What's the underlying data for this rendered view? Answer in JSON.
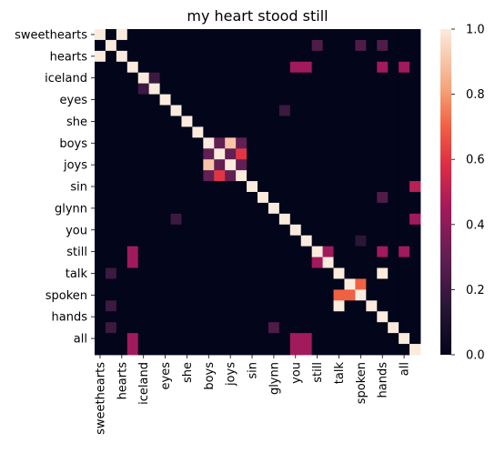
{
  "chart_data": {
    "type": "heatmap",
    "title": "my heart stood still",
    "labels": [
      "sweethearts",
      "",
      "hearts",
      "",
      "iceland",
      "",
      "eyes",
      "",
      "she",
      "",
      "boys",
      "",
      "joys",
      "",
      "sin",
      "",
      "glynn",
      "",
      "you",
      "",
      "still",
      "",
      "talk",
      "",
      "spoken",
      "",
      "hands",
      "",
      "all",
      ""
    ],
    "tick_labels": [
      "sweethearts",
      "hearts",
      "iceland",
      "eyes",
      "she",
      "boys",
      "joys",
      "sin",
      "glynn",
      "you",
      "still",
      "talk",
      "spoken",
      "hands",
      "all"
    ],
    "matrix": [
      [
        1,
        0,
        1,
        0,
        0,
        0,
        0,
        0,
        0,
        0,
        0,
        0,
        0,
        0,
        0,
        0,
        0,
        0,
        0,
        0,
        0,
        0,
        0,
        0,
        0,
        0,
        0,
        0,
        0,
        0
      ],
      [
        0,
        1,
        0,
        0,
        0,
        0,
        0,
        0,
        0,
        0,
        0,
        0,
        0,
        0,
        0,
        0,
        0,
        0,
        0,
        0,
        0.25,
        0,
        0,
        0,
        0.25,
        0,
        0.25,
        0,
        0,
        0
      ],
      [
        1,
        0,
        1,
        0,
        0,
        0,
        0,
        0,
        0,
        0,
        0,
        0,
        0,
        0,
        0,
        0,
        0,
        0,
        0,
        0,
        0,
        0,
        0,
        0,
        0,
        0,
        0,
        0,
        0,
        0
      ],
      [
        0,
        0,
        0,
        1,
        0,
        0,
        0,
        0,
        0,
        0,
        0,
        0,
        0,
        0,
        0,
        0,
        0,
        0,
        0.45,
        0.45,
        0,
        0,
        0,
        0,
        0,
        0,
        0.45,
        0,
        0.45,
        0
      ],
      [
        0,
        0,
        0,
        0,
        1,
        0.2,
        0,
        0,
        0,
        0,
        0,
        0,
        0,
        0,
        0,
        0,
        0,
        0,
        0,
        0,
        0,
        0,
        0,
        0,
        0,
        0,
        0,
        0,
        0,
        0
      ],
      [
        0,
        0,
        0,
        0,
        0.2,
        1,
        0,
        0,
        0,
        0,
        0,
        0,
        0,
        0,
        0,
        0,
        0,
        0,
        0,
        0,
        0,
        0,
        0,
        0,
        0,
        0,
        0,
        0,
        0,
        0
      ],
      [
        0,
        0,
        0,
        0,
        0,
        0,
        1,
        0,
        0,
        0,
        0,
        0,
        0,
        0,
        0,
        0,
        0,
        0,
        0,
        0,
        0,
        0,
        0,
        0,
        0,
        0,
        0,
        0,
        0,
        0
      ],
      [
        0,
        0,
        0,
        0,
        0,
        0,
        0,
        1,
        0,
        0,
        0,
        0,
        0,
        0,
        0,
        0,
        0,
        0.2,
        0,
        0,
        0,
        0,
        0,
        0,
        0,
        0,
        0,
        0,
        0,
        0
      ],
      [
        0,
        0,
        0,
        0,
        0,
        0,
        0,
        0,
        1,
        0,
        0,
        0,
        0,
        0,
        0,
        0,
        0,
        0,
        0,
        0,
        0,
        0,
        0,
        0,
        0,
        0,
        0,
        0,
        0,
        0
      ],
      [
        0,
        0,
        0,
        0,
        0,
        0,
        0,
        0,
        0,
        1,
        0,
        0,
        0,
        0,
        0,
        0,
        0,
        0,
        0,
        0,
        0,
        0,
        0,
        0,
        0,
        0,
        0,
        0,
        0,
        0
      ],
      [
        0,
        0,
        0,
        0,
        0,
        0,
        0,
        0,
        0,
        0,
        1,
        0.3,
        0.9,
        0.3,
        0,
        0,
        0,
        0,
        0,
        0,
        0,
        0,
        0,
        0,
        0,
        0,
        0,
        0,
        0,
        0
      ],
      [
        0,
        0,
        0,
        0,
        0,
        0,
        0,
        0,
        0,
        0,
        0.3,
        1,
        0.3,
        0.6,
        0,
        0,
        0,
        0,
        0,
        0,
        0,
        0,
        0,
        0,
        0,
        0,
        0,
        0,
        0,
        0
      ],
      [
        0,
        0,
        0,
        0,
        0,
        0,
        0,
        0,
        0,
        0,
        0.9,
        0.3,
        1,
        0.3,
        0,
        0,
        0,
        0,
        0,
        0,
        0,
        0,
        0,
        0,
        0,
        0,
        0,
        0,
        0,
        0
      ],
      [
        0,
        0,
        0,
        0,
        0,
        0,
        0,
        0,
        0,
        0,
        0.3,
        0.6,
        0.3,
        1,
        0,
        0,
        0,
        0,
        0,
        0,
        0,
        0,
        0,
        0,
        0,
        0,
        0,
        0,
        0,
        0
      ],
      [
        0,
        0,
        0,
        0,
        0,
        0,
        0,
        0,
        0,
        0,
        0,
        0,
        0,
        0,
        1,
        0,
        0,
        0,
        0,
        0,
        0,
        0,
        0,
        0,
        0,
        0,
        0,
        0,
        0,
        0.5
      ],
      [
        0,
        0,
        0,
        0,
        0,
        0,
        0,
        0,
        0,
        0,
        0,
        0,
        0,
        0,
        0,
        1,
        0,
        0,
        0,
        0,
        0,
        0,
        0,
        0,
        0,
        0,
        0.25,
        0,
        0,
        0
      ],
      [
        0,
        0,
        0,
        0,
        0,
        0,
        0,
        0,
        0,
        0,
        0,
        0,
        0,
        0,
        0,
        0,
        1,
        0,
        0,
        0,
        0,
        0,
        0,
        0,
        0,
        0,
        0,
        0,
        0,
        0
      ],
      [
        0,
        0,
        0,
        0,
        0,
        0,
        0,
        0.2,
        0,
        0,
        0,
        0,
        0,
        0,
        0,
        0,
        0,
        1,
        0,
        0,
        0,
        0,
        0,
        0,
        0,
        0,
        0,
        0,
        0,
        0.45
      ],
      [
        0,
        0,
        0,
        0,
        0,
        0,
        0,
        0,
        0,
        0,
        0,
        0,
        0,
        0,
        0,
        0,
        0,
        0,
        1,
        0,
        0,
        0,
        0,
        0,
        0,
        0,
        0,
        0,
        0,
        0
      ],
      [
        0,
        0,
        0,
        0,
        0,
        0,
        0,
        0,
        0,
        0,
        0,
        0,
        0,
        0,
        0,
        0,
        0,
        0,
        0,
        1,
        0,
        0,
        0,
        0,
        0.15,
        0,
        0,
        0,
        0,
        0
      ],
      [
        0,
        0,
        0,
        0.45,
        0,
        0,
        0,
        0,
        0,
        0,
        0,
        0,
        0,
        0,
        0,
        0,
        0,
        0,
        0,
        0,
        1,
        0.45,
        0,
        0,
        0,
        0,
        0.45,
        0,
        0.45,
        0
      ],
      [
        0,
        0,
        0,
        0.45,
        0,
        0,
        0,
        0,
        0,
        0,
        0,
        0,
        0,
        0,
        0,
        0,
        0,
        0,
        0,
        0,
        0.45,
        1,
        0,
        0,
        0,
        0,
        0,
        0,
        0,
        0
      ],
      [
        0,
        0.2,
        0,
        0,
        0,
        0,
        0,
        0,
        0,
        0,
        0,
        0,
        0,
        0,
        0,
        0,
        0,
        0,
        0,
        0,
        0,
        0,
        1,
        0,
        0,
        0,
        1,
        0,
        0,
        0
      ],
      [
        0,
        0,
        0,
        0,
        0,
        0,
        0,
        0,
        0,
        0,
        0,
        0,
        0,
        0,
        0,
        0,
        0,
        0,
        0,
        0,
        0,
        0,
        0,
        1,
        0.7,
        0,
        0,
        0,
        0,
        0
      ],
      [
        0,
        0,
        0,
        0,
        0,
        0,
        0,
        0,
        0,
        0,
        0,
        0,
        0,
        0,
        0,
        0,
        0,
        0,
        0,
        0,
        0,
        0,
        0.7,
        0.7,
        1,
        0,
        0,
        0,
        0,
        0
      ],
      [
        0,
        0.2,
        0,
        0,
        0,
        0,
        0,
        0,
        0,
        0,
        0,
        0,
        0,
        0,
        0,
        0,
        0,
        0,
        0,
        0,
        0,
        0,
        1,
        0,
        0,
        1,
        0,
        0,
        0,
        0
      ],
      [
        0,
        0,
        0,
        0,
        0,
        0,
        0,
        0,
        0,
        0,
        0,
        0,
        0,
        0,
        0,
        0,
        0,
        0,
        0,
        0,
        0,
        0,
        0,
        0,
        0,
        0,
        1,
        0,
        0,
        0
      ],
      [
        0,
        0.2,
        0,
        0,
        0,
        0,
        0,
        0,
        0,
        0,
        0,
        0,
        0,
        0,
        0,
        0,
        0.25,
        0,
        0,
        0,
        0,
        0,
        0,
        0,
        0,
        0,
        0,
        1,
        0,
        0
      ],
      [
        0,
        0,
        0,
        0.45,
        0,
        0,
        0,
        0,
        0,
        0,
        0,
        0,
        0,
        0,
        0,
        0,
        0,
        0,
        0.45,
        0.45,
        0,
        0,
        0,
        0,
        0,
        0,
        0,
        0,
        1,
        0
      ],
      [
        0,
        0,
        0,
        0.45,
        0,
        0,
        0,
        0,
        0,
        0,
        0,
        0,
        0,
        0,
        0,
        0,
        0,
        0,
        0.45,
        0.45,
        0,
        0,
        0,
        0,
        0,
        0,
        0,
        0,
        0,
        1
      ]
    ],
    "colorbar": {
      "min": 0.0,
      "max": 1.0,
      "ticks": [
        "0.0",
        "0.2",
        "0.4",
        "0.6",
        "0.8",
        "1.0"
      ]
    },
    "colormap": "rocket"
  }
}
